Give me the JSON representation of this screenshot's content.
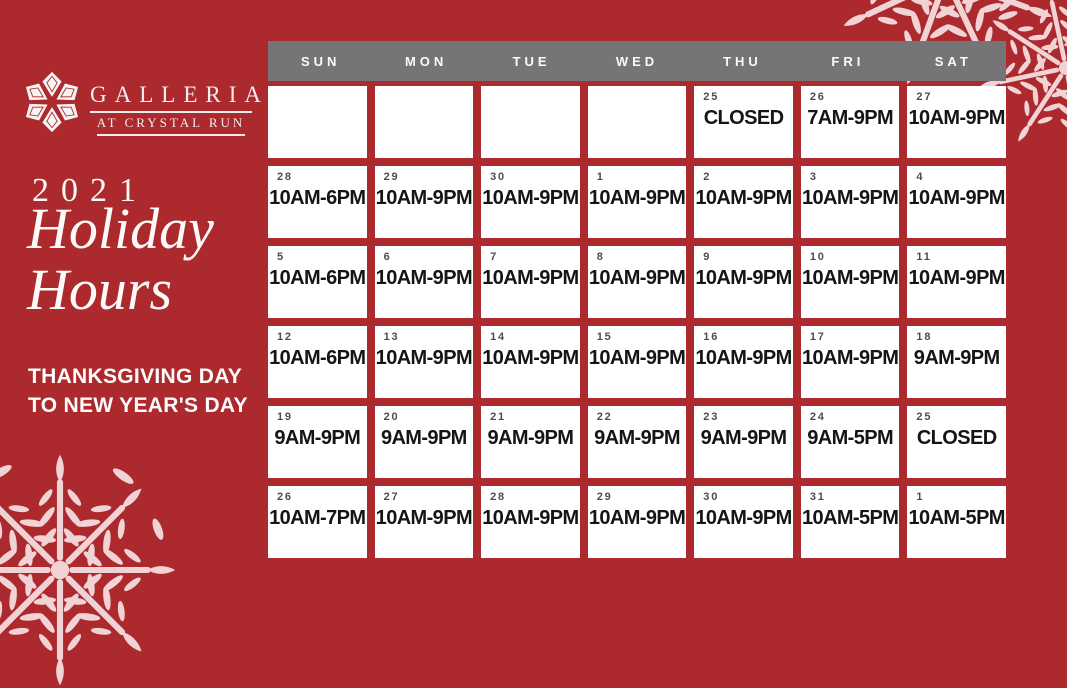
{
  "brand": {
    "name": "GALLERIA",
    "tagline": "AT CRYSTAL RUN"
  },
  "title": {
    "year": "2021",
    "line1": "Holiday",
    "line2": "Hours"
  },
  "subtitle": {
    "line1": "THANKSGIVING DAY",
    "line2": "TO NEW YEAR'S DAY"
  },
  "calendar": {
    "day_headers": [
      "SUN",
      "MON",
      "TUE",
      "WED",
      "THU",
      "FRI",
      "SAT"
    ],
    "weeks": [
      [
        {
          "date": "",
          "hours": ""
        },
        {
          "date": "",
          "hours": ""
        },
        {
          "date": "",
          "hours": ""
        },
        {
          "date": "",
          "hours": ""
        },
        {
          "date": "25",
          "hours": "CLOSED"
        },
        {
          "date": "26",
          "hours": "7AM-9PM"
        },
        {
          "date": "27",
          "hours": "10AM-9PM"
        }
      ],
      [
        {
          "date": "28",
          "hours": "10AM-6PM"
        },
        {
          "date": "29",
          "hours": "10AM-9PM"
        },
        {
          "date": "30",
          "hours": "10AM-9PM"
        },
        {
          "date": "1",
          "hours": "10AM-9PM"
        },
        {
          "date": "2",
          "hours": "10AM-9PM"
        },
        {
          "date": "3",
          "hours": "10AM-9PM"
        },
        {
          "date": "4",
          "hours": "10AM-9PM"
        }
      ],
      [
        {
          "date": "5",
          "hours": "10AM-6PM"
        },
        {
          "date": "6",
          "hours": "10AM-9PM"
        },
        {
          "date": "7",
          "hours": "10AM-9PM"
        },
        {
          "date": "8",
          "hours": "10AM-9PM"
        },
        {
          "date": "9",
          "hours": "10AM-9PM"
        },
        {
          "date": "10",
          "hours": "10AM-9PM"
        },
        {
          "date": "11",
          "hours": "10AM-9PM"
        }
      ],
      [
        {
          "date": "12",
          "hours": "10AM-6PM"
        },
        {
          "date": "13",
          "hours": "10AM-9PM"
        },
        {
          "date": "14",
          "hours": "10AM-9PM"
        },
        {
          "date": "15",
          "hours": "10AM-9PM"
        },
        {
          "date": "16",
          "hours": "10AM-9PM"
        },
        {
          "date": "17",
          "hours": "10AM-9PM"
        },
        {
          "date": "18",
          "hours": "9AM-9PM"
        }
      ],
      [
        {
          "date": "19",
          "hours": "9AM-9PM"
        },
        {
          "date": "20",
          "hours": "9AM-9PM"
        },
        {
          "date": "21",
          "hours": "9AM-9PM"
        },
        {
          "date": "22",
          "hours": "9AM-9PM"
        },
        {
          "date": "23",
          "hours": "9AM-9PM"
        },
        {
          "date": "24",
          "hours": "9AM-5PM"
        },
        {
          "date": "25",
          "hours": "CLOSED"
        }
      ],
      [
        {
          "date": "26",
          "hours": "10AM-7PM"
        },
        {
          "date": "27",
          "hours": "10AM-9PM"
        },
        {
          "date": "28",
          "hours": "10AM-9PM"
        },
        {
          "date": "29",
          "hours": "10AM-9PM"
        },
        {
          "date": "30",
          "hours": "10AM-9PM"
        },
        {
          "date": "31",
          "hours": "10AM-5PM"
        },
        {
          "date": "1",
          "hours": "10AM-5PM"
        }
      ]
    ]
  },
  "icons": {
    "logo": "galleria-rosette-logo",
    "decorations": "snowflake-icon"
  },
  "colors": {
    "background_red": "#AC2A2E",
    "header_gray": "#757477",
    "cell_white": "#FFFFFF",
    "date_gray": "#4D4D4D",
    "hours_black": "#151515",
    "text_white": "#FCFAF9",
    "snowflake_pink": "#F2D3D5"
  }
}
